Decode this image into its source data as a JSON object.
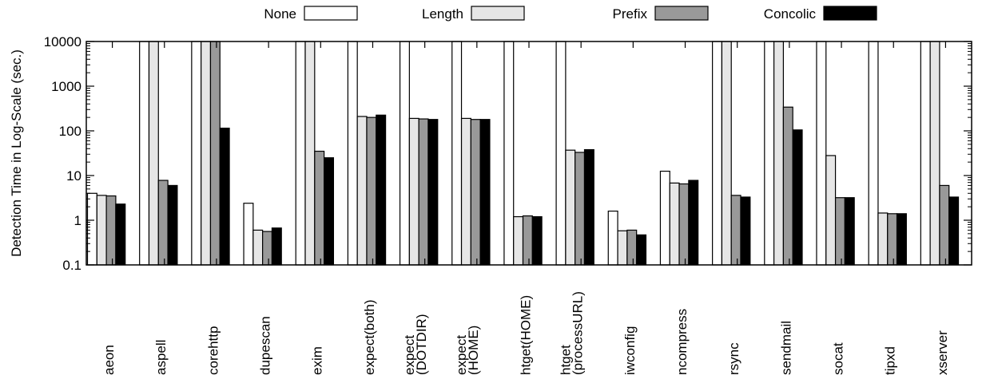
{
  "chart_data": {
    "type": "bar",
    "title": "",
    "xlabel": "",
    "ylabel": "Detection Time in Log-Scale (sec.)",
    "yscale": "log",
    "ylim": [
      0.1,
      10000
    ],
    "yticks": [
      {
        "value": 0.1,
        "label": "0.1"
      },
      {
        "value": 1,
        "label": "1"
      },
      {
        "value": 10,
        "label": "10"
      },
      {
        "value": 100,
        "label": "100"
      },
      {
        "value": 1000,
        "label": "1000"
      },
      {
        "value": 10000,
        "label": "10000"
      }
    ],
    "grid": false,
    "legend": "top",
    "categories": [
      "aeon",
      "aspell",
      "corehttp",
      "dupescan",
      "exim",
      "expect(both)",
      "expect\n(DOTDIR)",
      "expect\n(HOME)",
      "htget(HOME)",
      "htget\n(processURL)",
      "iwconfig",
      "ncompress",
      "rsync",
      "sendmail",
      "socat",
      "tipxd",
      "xserver"
    ],
    "series": [
      {
        "name": "None",
        "color": "#ffffff",
        "values": [
          4.0,
          10000,
          10000,
          2.4,
          10000,
          10000,
          10000,
          10000,
          10000,
          10000,
          1.6,
          12.5,
          10000,
          10000,
          10000,
          10000,
          10000
        ]
      },
      {
        "name": "Length",
        "color": "#e6e6e6",
        "values": [
          3.6,
          10000,
          10000,
          0.6,
          10000,
          210,
          190,
          190,
          1.2,
          37,
          0.58,
          6.8,
          10000,
          10000,
          28,
          1.45,
          10000
        ]
      },
      {
        "name": "Prefix",
        "color": "#999999",
        "values": [
          3.5,
          7.8,
          10000,
          0.56,
          35,
          200,
          185,
          180,
          1.25,
          33,
          0.6,
          6.5,
          3.6,
          340,
          3.2,
          1.4,
          6.0
        ]
      },
      {
        "name": "Concolic",
        "color": "#000000",
        "values": [
          2.3,
          6.0,
          115,
          0.67,
          25,
          225,
          180,
          180,
          1.2,
          38,
          0.47,
          7.8,
          3.3,
          105,
          3.2,
          1.4,
          3.3
        ]
      }
    ]
  }
}
